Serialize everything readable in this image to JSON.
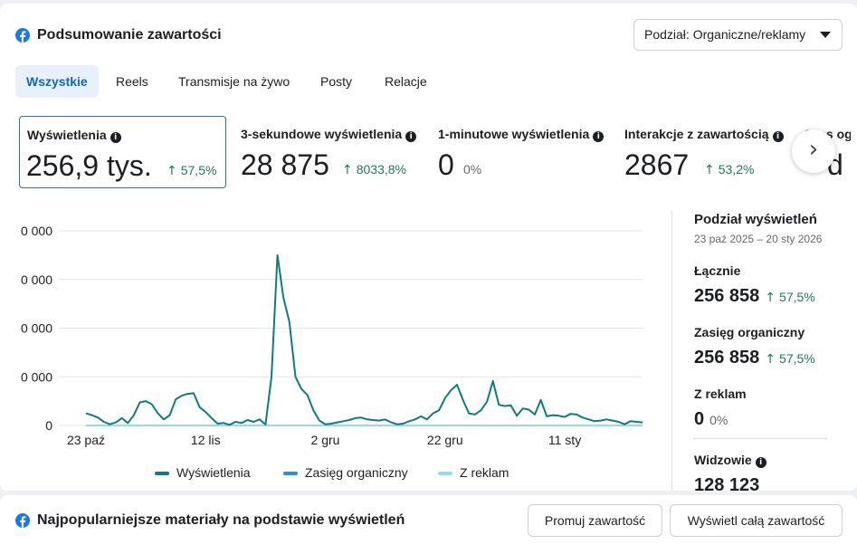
{
  "header": {
    "title": "Podsumowanie zawartości",
    "breakdown_dropdown": "Podział: Organiczne/reklamy"
  },
  "tabs": [
    {
      "label": "Wszystkie",
      "active": true
    },
    {
      "label": "Reels"
    },
    {
      "label": "Transmisje na żywo"
    },
    {
      "label": "Posty"
    },
    {
      "label": "Relacje"
    }
  ],
  "metrics": [
    {
      "label": "Wyświetlenia",
      "value": "256,9 tys.",
      "change": "57,5%",
      "trend": "up"
    },
    {
      "label": "3-sekundowe wyświetlenia",
      "value": "28 875",
      "change": "8033,8%",
      "trend": "up"
    },
    {
      "label": "1-minutowe wyświetlenia",
      "value": "0",
      "change": "0%",
      "trend": "none"
    },
    {
      "label": "Interakcje z zawartością",
      "value": "2867",
      "change": "53,2%",
      "trend": "up"
    },
    {
      "label": "Czas og",
      "value": "d"
    }
  ],
  "chart_data": {
    "type": "line",
    "y_tick_labels": [
      "0 000",
      "0 000",
      "0 000",
      "0 000",
      "0"
    ],
    "x_tick_labels": [
      "23 paź",
      "12 lis",
      "2 gru",
      "22 gru",
      "11 sty"
    ],
    "series": [
      {
        "name": "Wyświetlenia",
        "color": "#0f7b80",
        "values": [
          2000,
          1700,
          1300,
          600,
          200,
          500,
          1200,
          400,
          1700,
          3800,
          4000,
          3500,
          2000,
          1000,
          1700,
          4300,
          4900,
          5200,
          5300,
          3000,
          2200,
          1200,
          300,
          400,
          100,
          600,
          400,
          900,
          600,
          1000,
          150,
          8000,
          28000,
          21000,
          17000,
          8000,
          6000,
          5000,
          2500,
          800,
          200,
          300,
          500,
          700,
          900,
          1200,
          1300,
          1000,
          900,
          800,
          1000,
          500,
          200,
          300,
          700,
          1000,
          1500,
          1000,
          2000,
          2500,
          4500,
          5800,
          6700,
          4200,
          2000,
          1800,
          2500,
          3900,
          7300,
          3400,
          3200,
          3300,
          1600,
          2800,
          2600,
          1800,
          4200,
          1500,
          1700,
          1600,
          1400,
          1900,
          1800,
          1300,
          1000,
          700,
          800,
          1000,
          800,
          600,
          200,
          700,
          600,
          500
        ]
      },
      {
        "name": "Zasięg organiczny",
        "color": "#2d8fd5",
        "values": []
      },
      {
        "name": "Z reklam",
        "color": "#9cd8ec",
        "values": []
      }
    ]
  },
  "breakdown": {
    "title": "Podział wyświetleń",
    "date_range": "23 paź 2025 – 20 sty 2026",
    "total_label": "Łącznie",
    "total_value": "256 858",
    "total_change": "57,5%",
    "organic_label": "Zasięg organiczny",
    "organic_value": "256 858",
    "organic_change": "57,5%",
    "ads_label": "Z reklam",
    "ads_value": "0",
    "ads_change": "0%",
    "viewers_label": "Widzowie",
    "viewers_value": "128 123"
  },
  "bottom": {
    "title": "Najpopularniejsze materiały na podstawie wyświetleń",
    "promote_button": "Promuj zawartość",
    "view_all_button": "Wyświetl całą zawartość"
  },
  "colors": {
    "accent": "#0a6ac5",
    "positive": "#1a7a5c",
    "facebook": "#1877f2"
  }
}
